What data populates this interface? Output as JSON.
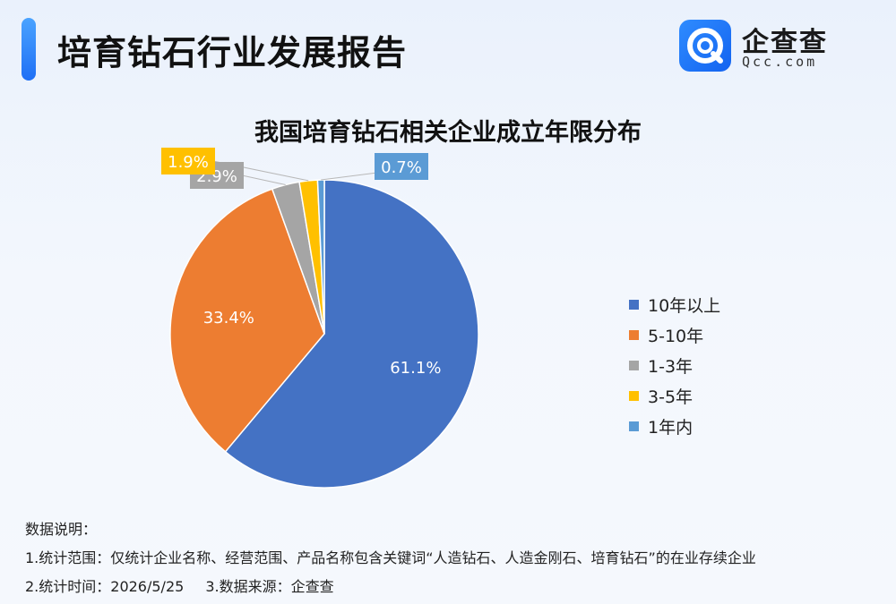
{
  "header": {
    "title": "培育钻石行业发展报告"
  },
  "logo": {
    "name": "企查查",
    "domain": "Qcc.com"
  },
  "chart_data": {
    "type": "pie",
    "title": "我国培育钻石相关企业成立年限分布",
    "legend_position": "right",
    "slices": [
      {
        "label": "10年以上",
        "value": 61.1,
        "value_label": "61.1%",
        "color": "#4472C4"
      },
      {
        "label": "5-10年",
        "value": 33.4,
        "value_label": "33.4%",
        "color": "#ED7D31"
      },
      {
        "label": "1-3年",
        "value": 2.9,
        "value_label": "2.9%",
        "color": "#A5A5A5"
      },
      {
        "label": "3-5年",
        "value": 1.9,
        "value_label": "1.9%",
        "color": "#FFC000"
      },
      {
        "label": "1年内",
        "value": 0.7,
        "value_label": "0.7%",
        "color": "#5B9BD5"
      }
    ]
  },
  "notes": {
    "heading": "数据说明：",
    "scope": "1.统计范围：仅统计企业名称、经营范围、产品名称包含关键词“人造钻石、人造金刚石、培育钻石”的在业存续企业",
    "time": "2.统计时间：2026/5/25",
    "source": "3.数据来源：企查查"
  }
}
